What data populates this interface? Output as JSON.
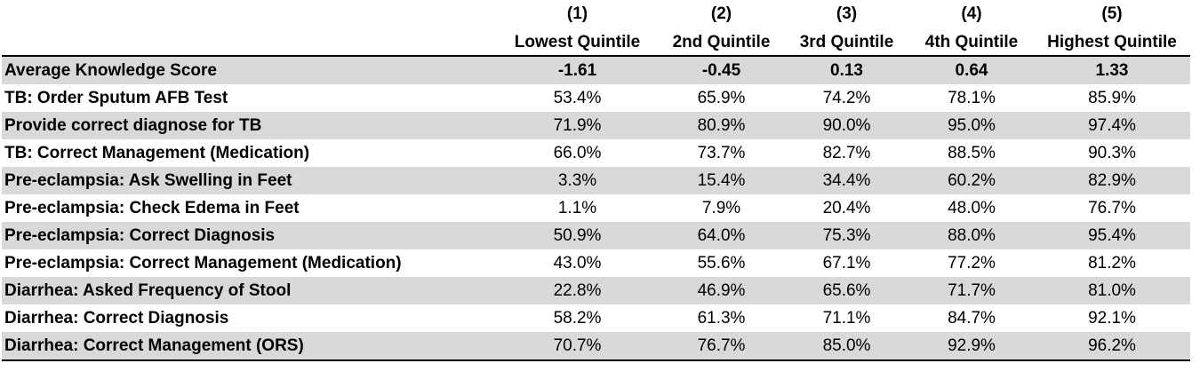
{
  "table": {
    "columns": [
      {
        "number": "(1)",
        "name": "Lowest Quintile"
      },
      {
        "number": "(2)",
        "name": "2nd Quintile"
      },
      {
        "number": "(3)",
        "name": "3rd Quintile"
      },
      {
        "number": "(4)",
        "name": "4th Quintile"
      },
      {
        "number": "(5)",
        "name": "Highest Quintile"
      }
    ],
    "rows": [
      {
        "label": "Average Knowledge Score",
        "values": [
          "-1.61",
          "-0.45",
          "0.13",
          "0.64",
          "1.33"
        ]
      },
      {
        "label": "TB: Order Sputum AFB Test",
        "values": [
          "53.4%",
          "65.9%",
          "74.2%",
          "78.1%",
          "85.9%"
        ]
      },
      {
        "label": "Provide correct diagnose for TB",
        "values": [
          "71.9%",
          "80.9%",
          "90.0%",
          "95.0%",
          "97.4%"
        ]
      },
      {
        "label": "TB: Correct Management (Medication)",
        "values": [
          "66.0%",
          "73.7%",
          "82.7%",
          "88.5%",
          "90.3%"
        ]
      },
      {
        "label": "Pre-eclampsia: Ask Swelling in Feet",
        "values": [
          "3.3%",
          "15.4%",
          "34.4%",
          "60.2%",
          "82.9%"
        ]
      },
      {
        "label": "Pre-eclampsia: Check Edema in Feet",
        "values": [
          "1.1%",
          "7.9%",
          "20.4%",
          "48.0%",
          "76.7%"
        ]
      },
      {
        "label": "Pre-eclampsia: Correct Diagnosis",
        "values": [
          "50.9%",
          "64.0%",
          "75.3%",
          "88.0%",
          "95.4%"
        ]
      },
      {
        "label": "Pre-eclampsia: Correct Management (Medication)",
        "values": [
          "43.0%",
          "55.6%",
          "67.1%",
          "77.2%",
          "81.2%"
        ]
      },
      {
        "label": "Diarrhea: Asked Frequency of Stool",
        "values": [
          "22.8%",
          "46.9%",
          "65.6%",
          "71.7%",
          "81.0%"
        ]
      },
      {
        "label": "Diarrhea: Correct Diagnosis",
        "values": [
          "58.2%",
          "61.3%",
          "71.1%",
          "84.7%",
          "92.1%"
        ]
      },
      {
        "label": "Diarrhea: Correct Management (ORS)",
        "values": [
          "70.7%",
          "76.7%",
          "85.0%",
          "92.9%",
          "96.2%"
        ]
      }
    ]
  },
  "colors": {
    "shaded_row": "#d9d9d9",
    "rule": "#000000"
  }
}
